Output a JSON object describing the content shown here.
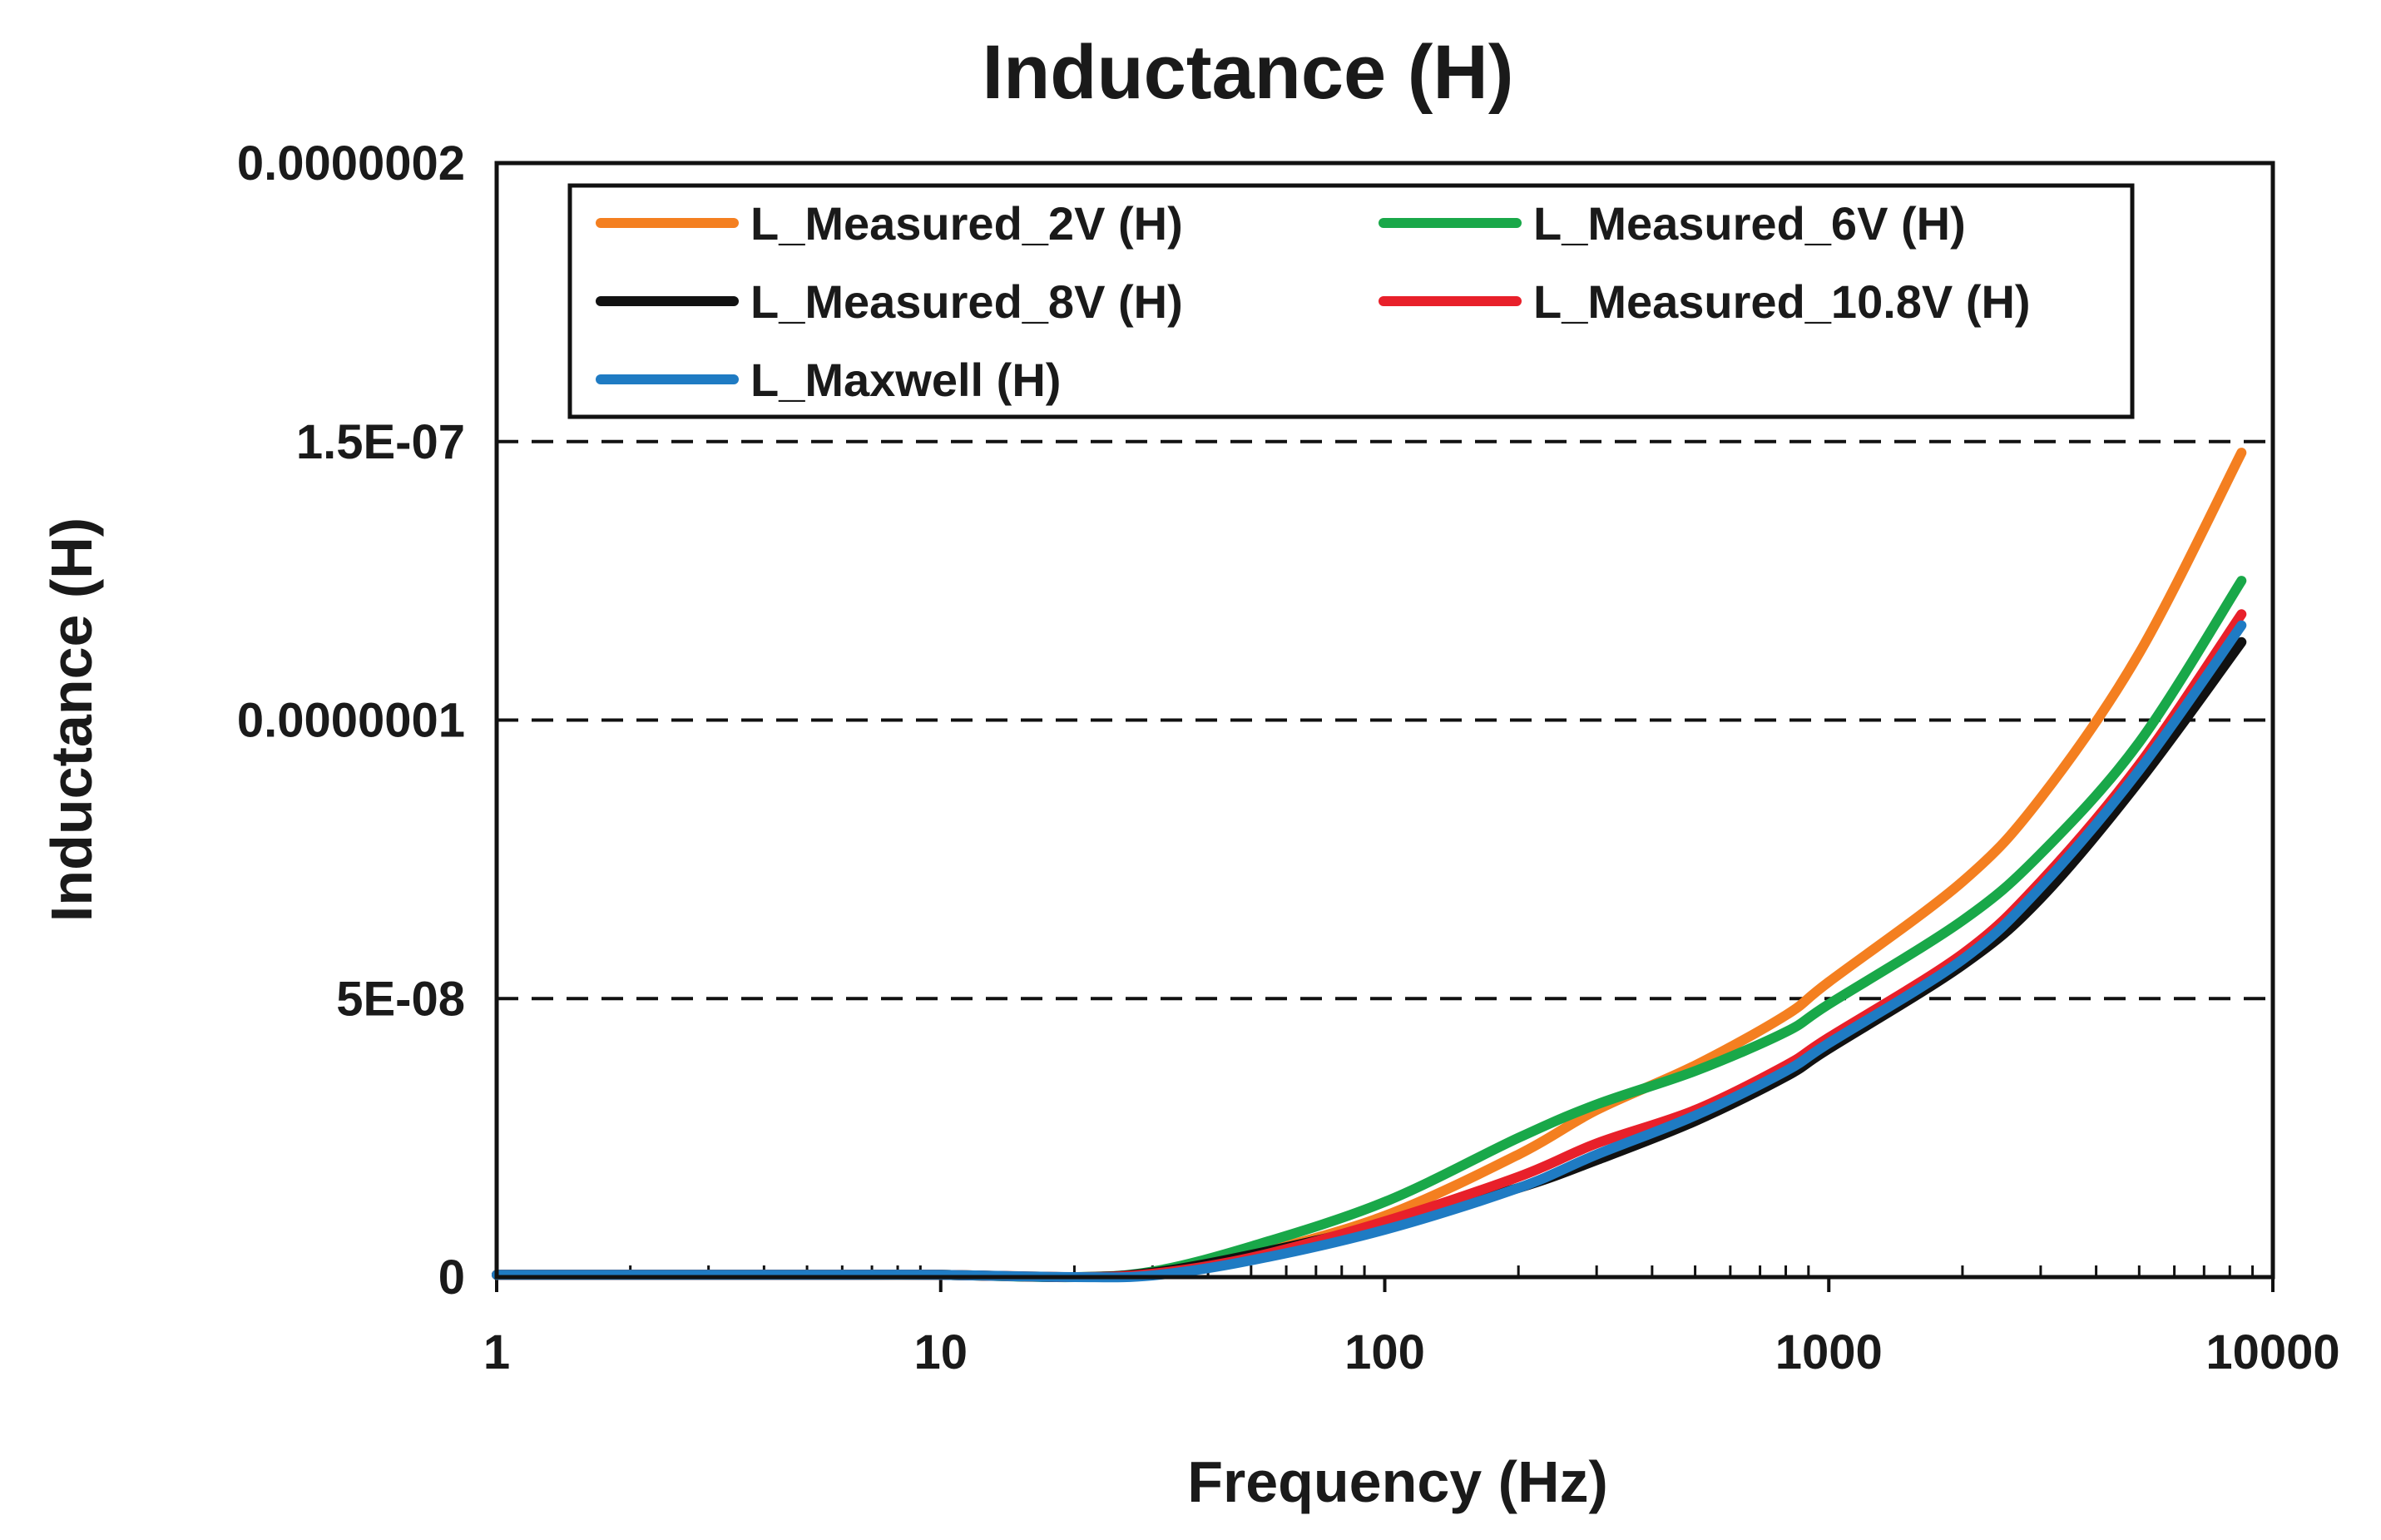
{
  "chart_data": {
    "type": "line",
    "title": "Inductance (H)",
    "xlabel": "Frequency (Hz)",
    "ylabel": "Inductance (H)",
    "xscale": "log",
    "xlim": [
      1,
      10000
    ],
    "ylim": [
      0,
      2e-07
    ],
    "grid": "horizontal dashed",
    "legend_position": "top",
    "x_ticks": [
      {
        "value": 1,
        "label": "1"
      },
      {
        "value": 10,
        "label": "10"
      },
      {
        "value": 100,
        "label": "100"
      },
      {
        "value": 1000,
        "label": "1000"
      },
      {
        "value": 10000,
        "label": "10000"
      }
    ],
    "y_ticks": [
      {
        "value": 0,
        "label": "0"
      },
      {
        "value": 5e-08,
        "label": "5E-08"
      },
      {
        "value": 1e-07,
        "label": "0.0000001"
      },
      {
        "value": 1.5e-07,
        "label": "1.5E-07"
      },
      {
        "value": 2e-07,
        "label": "0.0000002"
      }
    ],
    "x": [
      1,
      2,
      5,
      10,
      20,
      30,
      50,
      100,
      200,
      300,
      500,
      800,
      1000,
      2000,
      3000,
      5000,
      8500
    ],
    "series": [
      {
        "name": "L_Measured_2V (H)",
        "color": "#F47F20",
        "values": [
          4e-10,
          4e-10,
          4e-10,
          4e-10,
          0,
          5e-10,
          4e-09,
          1.1e-08,
          2.2e-08,
          3e-08,
          3.8e-08,
          4.7e-08,
          5.3e-08,
          7.1e-08,
          8.6e-08,
          1.12e-07,
          1.48e-07
        ]
      },
      {
        "name": "L_Measured_6V (H)",
        "color": "#19A849",
        "values": [
          4e-10,
          4e-10,
          4e-10,
          4e-10,
          0,
          1e-09,
          5.5e-09,
          1.35e-08,
          2.5e-08,
          3.1e-08,
          3.7e-08,
          4.4e-08,
          4.9e-08,
          6.4e-08,
          7.6e-08,
          9.6e-08,
          1.25e-07
        ]
      },
      {
        "name": "L_Measured_8V (H)",
        "color": "#111111",
        "values": [
          4e-10,
          4e-10,
          4e-10,
          4e-10,
          0,
          8e-10,
          4e-09,
          9.5e-09,
          1.6e-08,
          2.1e-08,
          2.8e-08,
          3.6e-08,
          4.1e-08,
          5.6e-08,
          6.8e-08,
          8.9e-08,
          1.14e-07
        ]
      },
      {
        "name": "L_Measured_10.8V (H)",
        "color": "#E8202A",
        "values": [
          4e-10,
          4e-10,
          4e-10,
          4e-10,
          0,
          6e-10,
          3.5e-09,
          1e-08,
          1.8e-08,
          2.4e-08,
          3e-08,
          3.8e-08,
          4.3e-08,
          5.8e-08,
          7.1e-08,
          9.2e-08,
          1.19e-07
        ]
      },
      {
        "name": "L_Maxwell (H)",
        "color": "#1F7BC3",
        "values": [
          4e-10,
          4e-10,
          4e-10,
          4e-10,
          0,
          3e-10,
          3e-09,
          8.5e-09,
          1.6e-08,
          2.2e-08,
          2.9e-08,
          3.7e-08,
          4.2e-08,
          5.7e-08,
          7e-08,
          9.1e-08,
          1.17e-07
        ]
      }
    ]
  }
}
